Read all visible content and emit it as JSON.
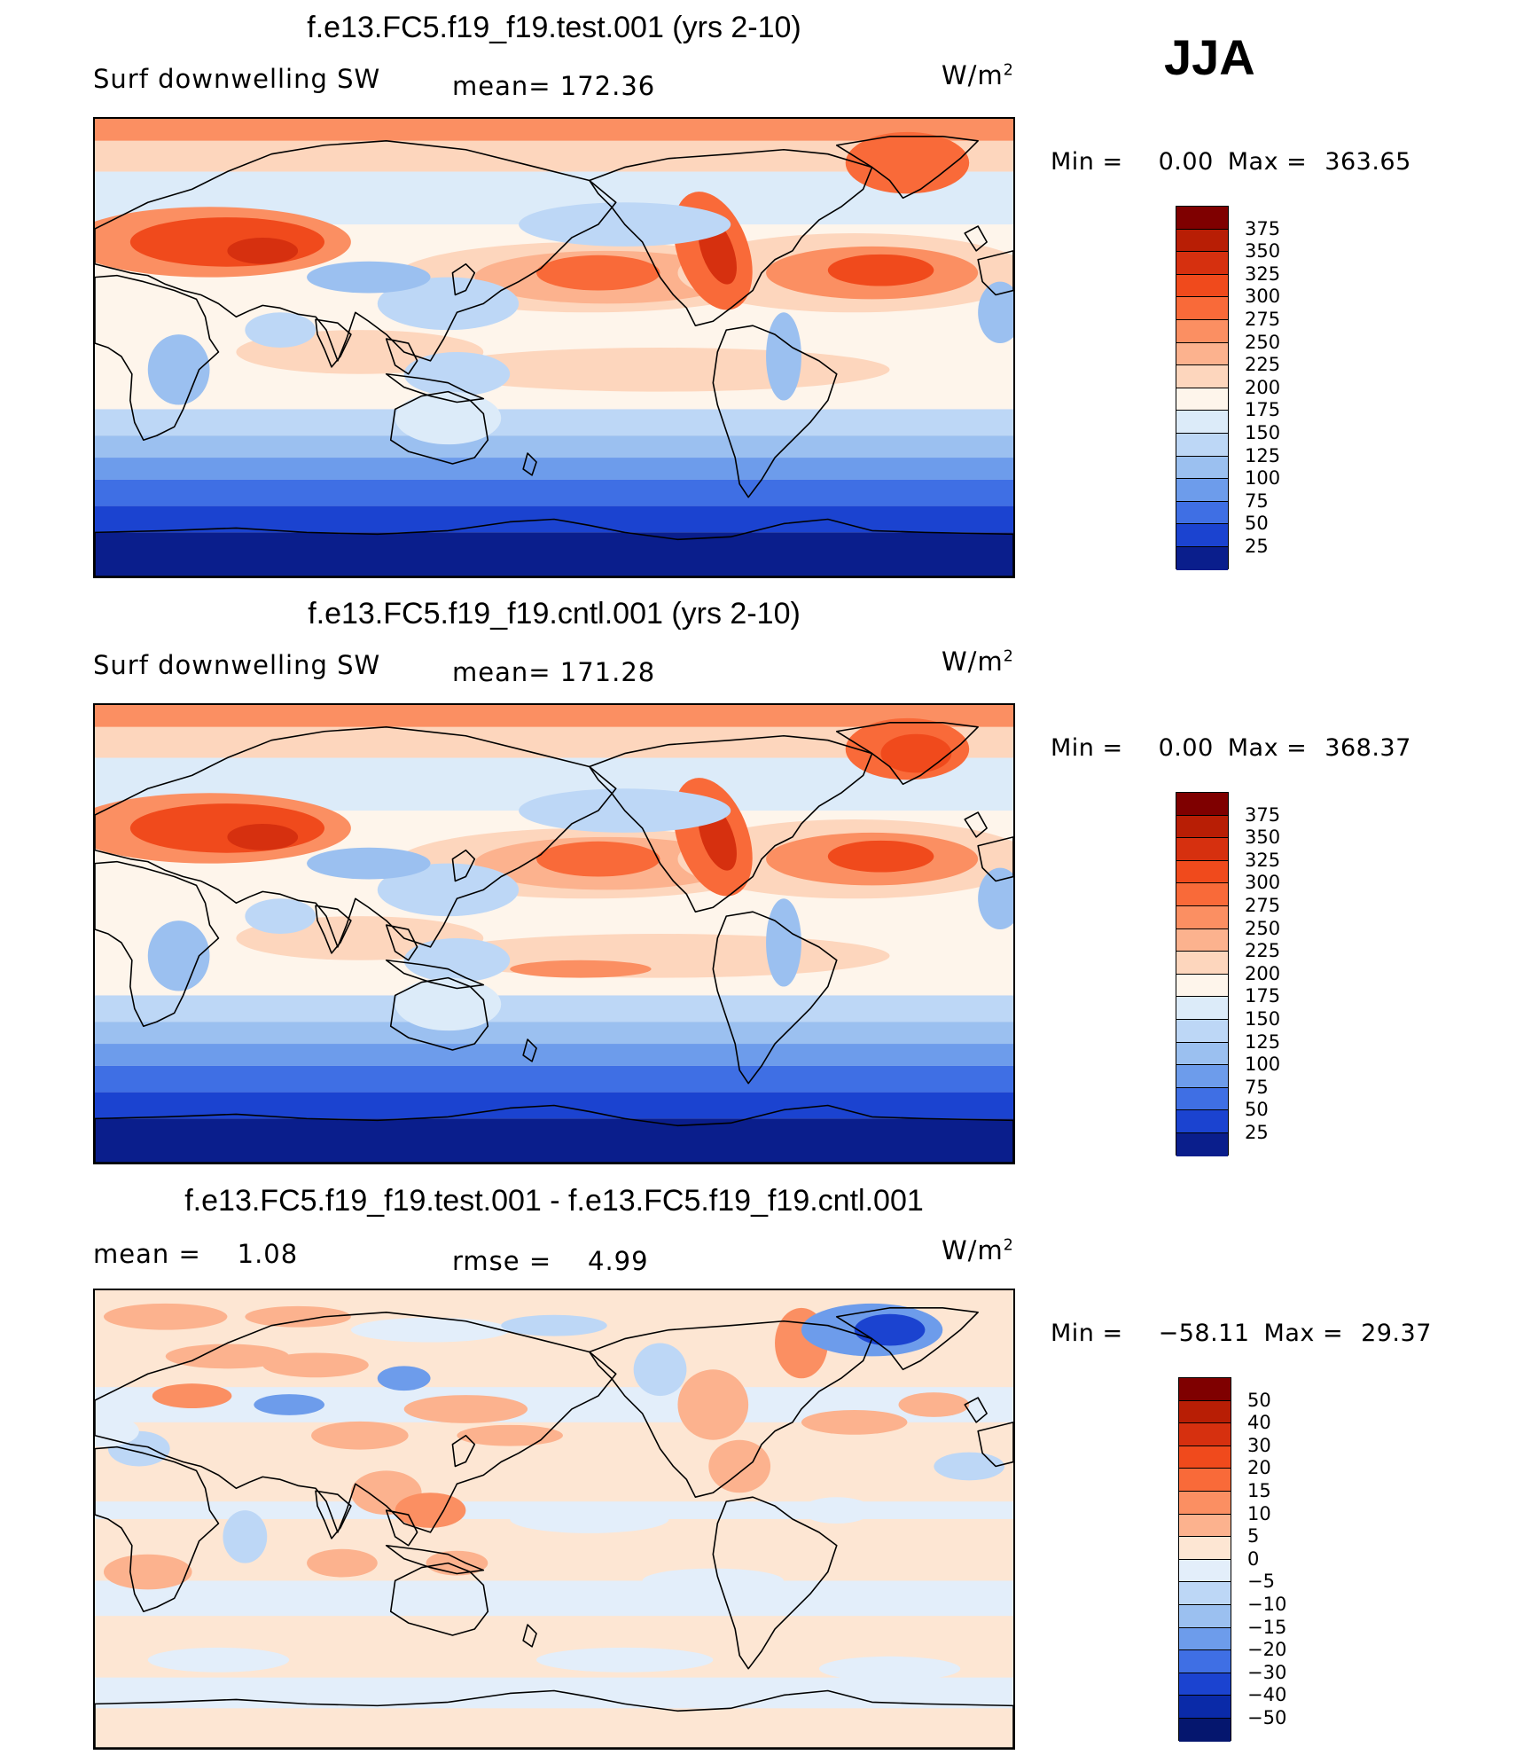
{
  "season": "JJA",
  "panels": [
    {
      "title": "f.e13.FC5.f19_f19.test.001 (yrs 2-10)",
      "left_label": "Surf downwelling SW",
      "center_label": "mean= 172.36",
      "units_base": "W/m",
      "units_exp": "2",
      "min_label": "Min =",
      "min_value": "0.00",
      "max_label": "Max =",
      "max_value": "363.65",
      "colorbar": {
        "levels": [
          "375",
          "350",
          "325",
          "300",
          "275",
          "250",
          "225",
          "200",
          "175",
          "150",
          "125",
          "100",
          "75",
          "50",
          "25"
        ],
        "colors": [
          "#7f0000",
          "#b81e05",
          "#d6300f",
          "#f04a1c",
          "#f96a39",
          "#fb8f62",
          "#fcb28e",
          "#fdd6bd",
          "#fef5eb",
          "#dcebf9",
          "#bdd7f6",
          "#9bc0f0",
          "#6d9ceb",
          "#3f6fe4",
          "#1b43d0",
          "#0a1e8c"
        ]
      },
      "variant": "test"
    },
    {
      "title": "f.e13.FC5.f19_f19.cntl.001 (yrs 2-10)",
      "left_label": "Surf downwelling SW",
      "center_label": "mean= 171.28",
      "units_base": "W/m",
      "units_exp": "2",
      "min_label": "Min =",
      "min_value": "0.00",
      "max_label": "Max =",
      "max_value": "368.37",
      "colorbar": {
        "levels": [
          "375",
          "350",
          "325",
          "300",
          "275",
          "250",
          "225",
          "200",
          "175",
          "150",
          "125",
          "100",
          "75",
          "50",
          "25"
        ],
        "colors": [
          "#7f0000",
          "#b81e05",
          "#d6300f",
          "#f04a1c",
          "#f96a39",
          "#fb8f62",
          "#fcb28e",
          "#fdd6bd",
          "#fef5eb",
          "#dcebf9",
          "#bdd7f6",
          "#9bc0f0",
          "#6d9ceb",
          "#3f6fe4",
          "#1b43d0",
          "#0a1e8c"
        ]
      },
      "variant": "cntl"
    },
    {
      "title": "f.e13.FC5.f19_f19.test.001 - f.e13.FC5.f19_f19.cntl.001",
      "left_label": "mean =    1.08",
      "center_label": "rmse =    4.99",
      "units_base": "W/m",
      "units_exp": "2",
      "min_label": "Min =",
      "min_value": "−58.11",
      "max_label": "Max =",
      "max_value": "29.37",
      "colorbar": {
        "levels": [
          "50",
          "40",
          "30",
          "20",
          "15",
          "10",
          "5",
          "0",
          "−5",
          "−10",
          "−15",
          "−20",
          "−30",
          "−40",
          "−50"
        ],
        "colors": [
          "#7f0000",
          "#b81e05",
          "#d6300f",
          "#f04a1c",
          "#f96a39",
          "#fb8f62",
          "#fcb28e",
          "#fde6d3",
          "#e3eefa",
          "#bdd7f6",
          "#9bc0f0",
          "#6d9ceb",
          "#3f6fe4",
          "#1b43d0",
          "#0a2aa8",
          "#05166e"
        ]
      },
      "variant": "diff"
    }
  ]
}
